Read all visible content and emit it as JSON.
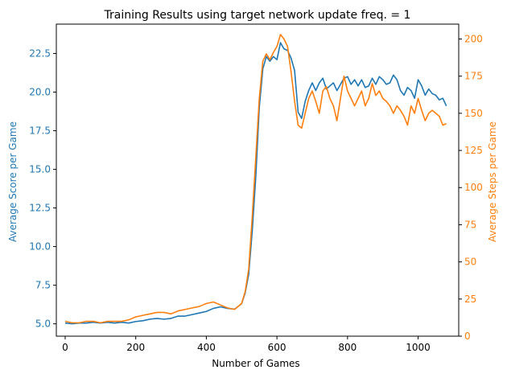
{
  "chart_data": {
    "type": "line",
    "title": "Training Results using target network update freq. = 1",
    "xlabel": "Number of Games",
    "ylabel_left": "Average Score per Game",
    "ylabel_right": "Average Steps per Game",
    "xlim": [
      -25,
      1115
    ],
    "ylim_left": [
      4.2,
      24.4
    ],
    "ylim_right": [
      0,
      210
    ],
    "xticks": [
      "0",
      "200",
      "400",
      "600",
      "800",
      "1000"
    ],
    "yticks_left": [
      "5.0",
      "7.5",
      "10.0",
      "12.5",
      "15.0",
      "17.5",
      "20.0",
      "22.5"
    ],
    "yticks_right": [
      "0",
      "25",
      "50",
      "75",
      "100",
      "125",
      "150",
      "175",
      "200"
    ],
    "grid": false,
    "legend": "none",
    "colors": {
      "score": "#1f77b4",
      "steps": "#ff7f0e",
      "axes": "#000000"
    },
    "series": [
      {
        "axis": "left",
        "x": [
          0,
          20,
          40,
          60,
          80,
          100,
          120,
          140,
          160,
          180,
          200,
          220,
          240,
          260,
          280,
          300,
          320,
          340,
          360,
          380,
          400,
          420,
          440,
          460,
          480,
          500,
          510,
          520,
          530,
          540,
          550,
          560,
          570,
          580,
          590,
          600,
          610,
          620,
          630,
          640,
          650,
          660,
          670,
          680,
          690,
          700,
          710,
          720,
          730,
          740,
          750,
          760,
          770,
          780,
          790,
          800,
          810,
          820,
          830,
          840,
          850,
          860,
          870,
          880,
          890,
          900,
          910,
          920,
          930,
          940,
          950,
          960,
          970,
          980,
          990,
          1000,
          1010,
          1020,
          1030,
          1040,
          1050,
          1060,
          1070,
          1080
        ],
        "values": [
          5.05,
          5.0,
          5.05,
          5.05,
          5.1,
          5.05,
          5.1,
          5.05,
          5.1,
          5.05,
          5.15,
          5.2,
          5.3,
          5.35,
          5.3,
          5.35,
          5.5,
          5.5,
          5.6,
          5.7,
          5.8,
          6.0,
          6.1,
          6.0,
          5.95,
          6.3,
          7.0,
          8.2,
          11.0,
          14.5,
          19.0,
          21.5,
          22.3,
          22.0,
          22.3,
          22.1,
          23.2,
          22.8,
          22.7,
          22.2,
          21.4,
          18.7,
          18.3,
          19.4,
          20.1,
          20.6,
          20.1,
          20.6,
          20.9,
          20.2,
          20.4,
          20.6,
          20.1,
          20.5,
          20.9,
          21.0,
          20.5,
          20.8,
          20.4,
          20.8,
          20.3,
          20.4,
          20.9,
          20.5,
          21.0,
          20.8,
          20.5,
          20.6,
          21.1,
          20.8,
          20.1,
          19.8,
          20.3,
          20.1,
          19.6,
          20.8,
          20.4,
          19.8,
          20.2,
          19.9,
          19.8,
          19.5,
          19.6,
          19.1
        ]
      },
      {
        "axis": "right",
        "x": [
          0,
          20,
          40,
          60,
          80,
          100,
          120,
          140,
          160,
          180,
          200,
          220,
          240,
          260,
          280,
          300,
          320,
          340,
          360,
          380,
          400,
          420,
          440,
          460,
          480,
          500,
          510,
          520,
          530,
          540,
          550,
          560,
          570,
          580,
          590,
          600,
          610,
          620,
          630,
          640,
          650,
          660,
          670,
          680,
          690,
          700,
          710,
          720,
          730,
          740,
          750,
          760,
          770,
          780,
          790,
          800,
          810,
          820,
          830,
          840,
          850,
          860,
          870,
          880,
          890,
          900,
          910,
          920,
          930,
          940,
          950,
          960,
          970,
          980,
          990,
          1000,
          1010,
          1020,
          1030,
          1040,
          1050,
          1060,
          1070,
          1080
        ],
        "values": [
          10,
          9,
          9,
          10,
          10,
          9,
          10,
          10,
          10,
          11,
          13,
          14,
          15,
          16,
          16,
          15,
          17,
          18,
          19,
          20,
          22,
          23,
          21,
          19,
          18,
          22,
          30,
          45,
          80,
          120,
          160,
          185,
          190,
          186,
          191,
          195,
          203,
          200,
          195,
          178,
          158,
          142,
          140,
          150,
          160,
          165,
          158,
          150,
          165,
          168,
          160,
          155,
          145,
          160,
          175,
          165,
          160,
          155,
          160,
          165,
          155,
          160,
          170,
          162,
          165,
          160,
          158,
          155,
          150,
          155,
          152,
          148,
          142,
          155,
          150,
          160,
          152,
          145,
          150,
          152,
          150,
          148,
          142,
          143
        ]
      }
    ]
  }
}
